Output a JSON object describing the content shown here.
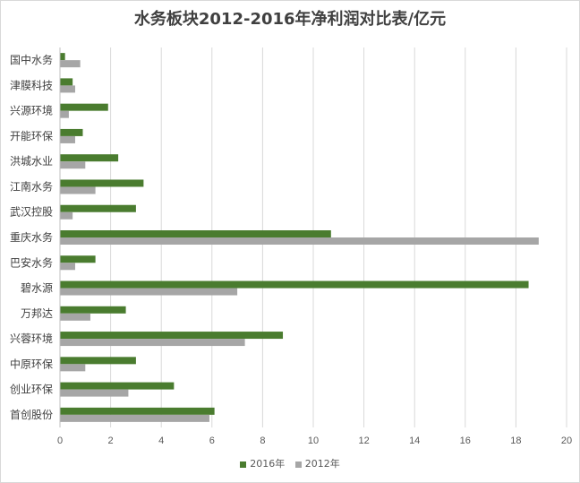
{
  "chart_data": {
    "type": "bar",
    "orientation": "horizontal",
    "title": "水务板块2012-2016年净利润对比表/亿元",
    "categories": [
      "国中水务",
      "津膜科技",
      "兴源环境",
      "开能环保",
      "洪城水业",
      "江南水务",
      "武汉控股",
      "重庆水务",
      "巴安水务",
      "碧水源",
      "万邦达",
      "兴蓉环境",
      "中原环保",
      "创业环保",
      "首创股份"
    ],
    "series": [
      {
        "name": "2016年",
        "color": "#4a7c2f",
        "values": [
          0.2,
          0.5,
          1.9,
          0.9,
          2.3,
          3.3,
          3.0,
          10.7,
          1.4,
          18.5,
          2.6,
          8.8,
          3.0,
          4.5,
          6.1
        ]
      },
      {
        "name": "2012年",
        "color": "#a6a6a6",
        "values": [
          0.8,
          0.6,
          0.35,
          0.6,
          1.0,
          1.4,
          0.5,
          18.9,
          0.6,
          7.0,
          1.2,
          7.3,
          1.0,
          2.7,
          5.9
        ]
      }
    ],
    "xlim": [
      0,
      20
    ],
    "xticks": [
      "0",
      "2",
      "4",
      "6",
      "8",
      "10",
      "12",
      "14",
      "16",
      "18",
      "20"
    ],
    "grid": true,
    "legend_position": "bottom"
  }
}
